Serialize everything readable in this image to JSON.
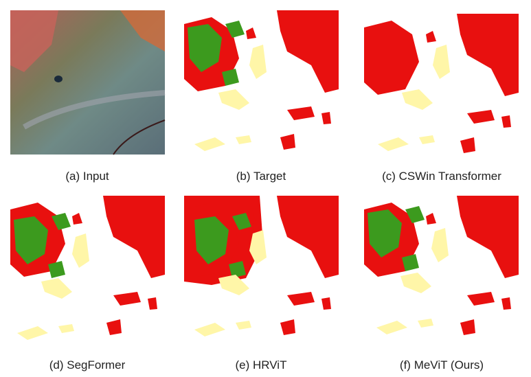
{
  "panels": [
    {
      "caption": "(a) Input"
    },
    {
      "caption": "(b) Target"
    },
    {
      "caption": "(c) CSWin Transformer"
    },
    {
      "caption": "(d) SegFormer"
    },
    {
      "caption": "(e) HRViT"
    },
    {
      "caption": "(f) MeViT (Ours)"
    }
  ]
}
